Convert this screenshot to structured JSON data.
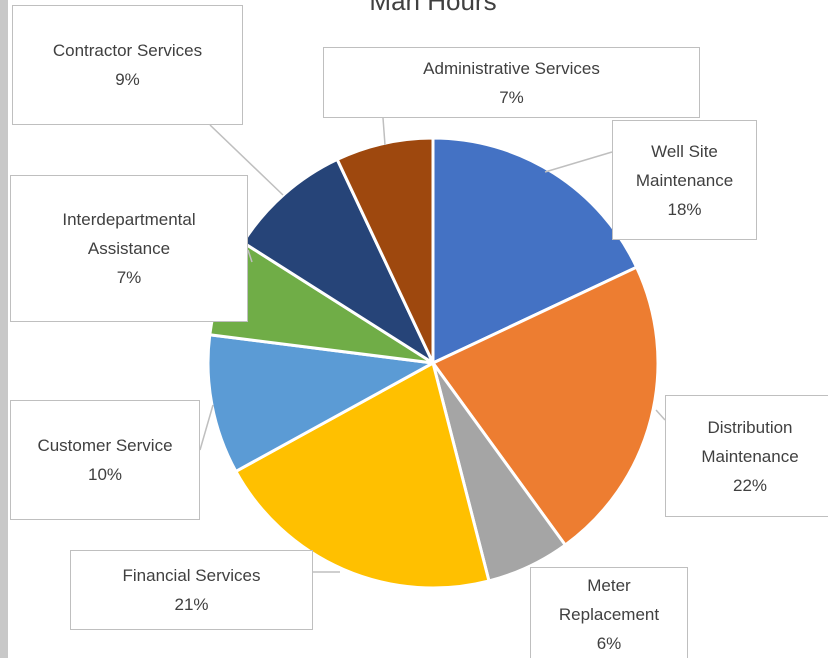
{
  "chart_data": {
    "type": "pie",
    "title": "Man Hours",
    "categories": [
      "Well Site Maintenance",
      "Distribution Maintenance",
      "Meter Replacement",
      "Financial Services",
      "Customer Service",
      "Interdepartmental Assistance",
      "Contractor Services",
      "Administrative Services"
    ],
    "values": [
      18,
      22,
      6,
      21,
      10,
      7,
      9,
      7
    ],
    "value_labels": [
      "18%",
      "22%",
      "6%",
      "21%",
      "10%",
      "7%",
      "9%",
      "7%"
    ],
    "colors": [
      "#4472c4",
      "#ed7d31",
      "#a5a5a5",
      "#ffc000",
      "#5b9bd5",
      "#70ad47",
      "#264478",
      "#9e480e"
    ]
  }
}
